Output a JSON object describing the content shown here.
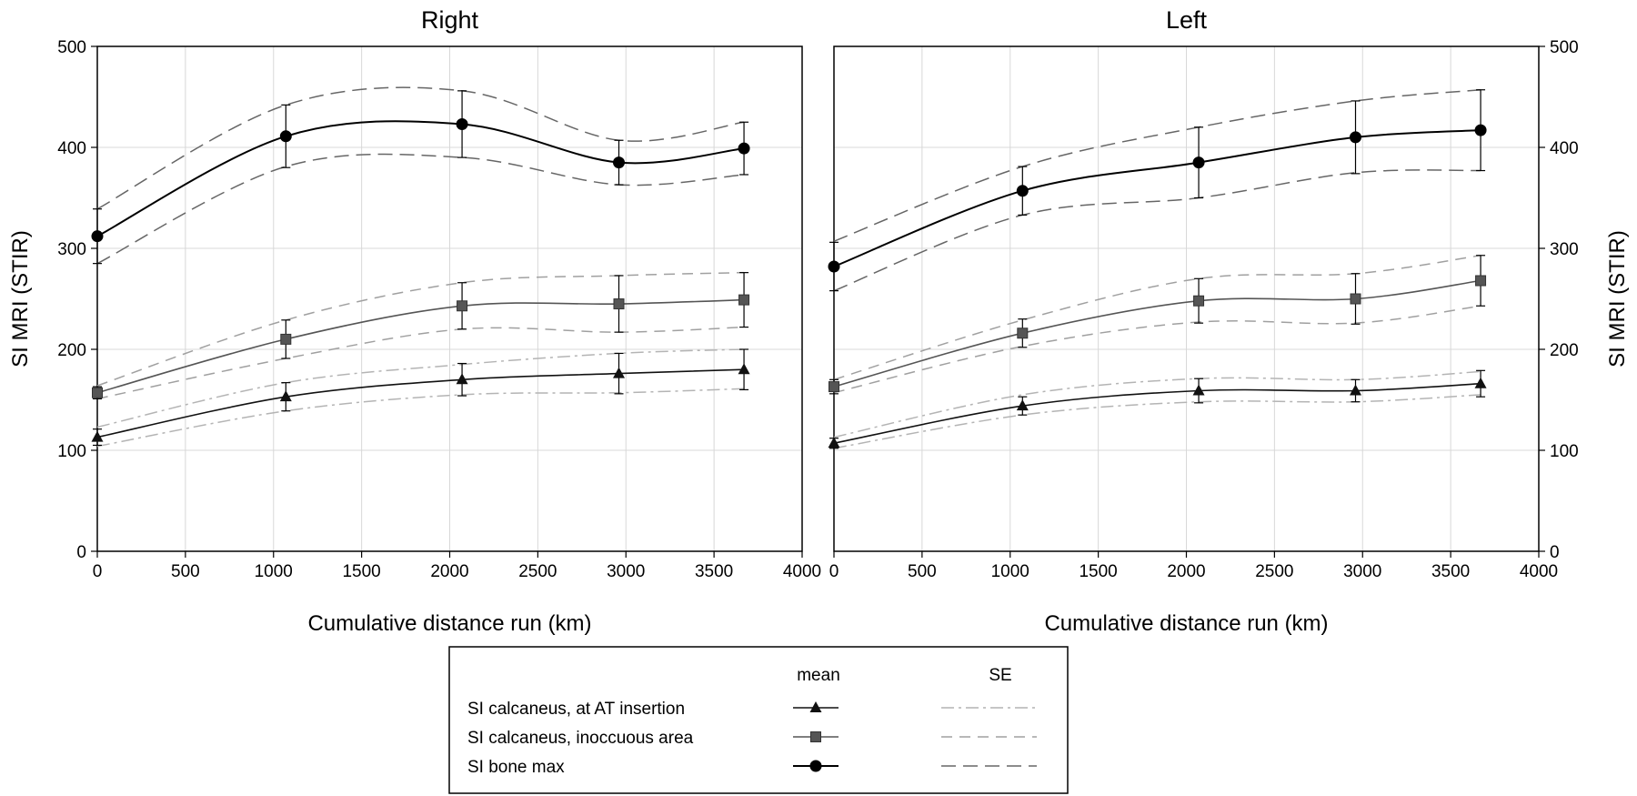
{
  "chart_data": [
    {
      "type": "line",
      "title": "Right",
      "xlabel": "Cumulative distance run (km)",
      "ylabel": "SI MRI (STIR)",
      "xlim": [
        0,
        4000
      ],
      "ylim": [
        0,
        500
      ],
      "x_ticks": [
        "0",
        "500",
        "1000",
        "1500",
        "2000",
        "2500",
        "3000",
        "3500",
        "4000"
      ],
      "y_ticks": [
        "0",
        "100",
        "200",
        "300",
        "400",
        "500"
      ],
      "grid": true,
      "y_axis_side": "left",
      "series": [
        {
          "key": "at",
          "x": [
            0,
            1070,
            2070,
            2960,
            3670
          ],
          "mean": [
            113,
            153,
            170,
            176,
            180
          ],
          "err": [
            8,
            14,
            16,
            20,
            20
          ],
          "upper": [
            123,
            167,
            185,
            196,
            200
          ],
          "lower": [
            104,
            139,
            155,
            157,
            161
          ]
        },
        {
          "key": "inoc",
          "x": [
            0,
            1070,
            2070,
            2960,
            3670
          ],
          "mean": [
            157,
            210,
            243,
            245,
            249
          ],
          "err": [
            6,
            19,
            23,
            28,
            27
          ],
          "upper": [
            164,
            229,
            266,
            273,
            276
          ],
          "lower": [
            151,
            191,
            220,
            217,
            222
          ]
        },
        {
          "key": "max",
          "x": [
            0,
            1070,
            2070,
            2960,
            3670
          ],
          "mean": [
            312,
            411,
            423,
            385,
            399
          ],
          "err": [
            27,
            31,
            33,
            22,
            26
          ],
          "upper": [
            339,
            442,
            456,
            407,
            425
          ],
          "lower": [
            285,
            381,
            390,
            363,
            373
          ]
        }
      ]
    },
    {
      "type": "line",
      "title": "Left",
      "xlabel": "Cumulative distance run (km)",
      "ylabel": "SI MRI (STIR)",
      "xlim": [
        0,
        4000
      ],
      "ylim": [
        0,
        500
      ],
      "x_ticks": [
        "0",
        "500",
        "1000",
        "1500",
        "2000",
        "2500",
        "3000",
        "3500",
        "4000"
      ],
      "y_ticks": [
        "0",
        "100",
        "200",
        "300",
        "400",
        "500"
      ],
      "grid": true,
      "y_axis_side": "right",
      "series": [
        {
          "key": "at",
          "x": [
            0,
            1070,
            2070,
            2960,
            3670
          ],
          "mean": [
            107,
            144,
            159,
            159,
            166
          ],
          "err": [
            5,
            9,
            12,
            11,
            13
          ],
          "upper": [
            113,
            155,
            171,
            170,
            178
          ],
          "lower": [
            102,
            135,
            148,
            148,
            155
          ]
        },
        {
          "key": "inoc",
          "x": [
            0,
            1070,
            2070,
            2960,
            3670
          ],
          "mean": [
            163,
            216,
            248,
            250,
            268
          ],
          "err": [
            7,
            14,
            22,
            25,
            25
          ],
          "upper": [
            170,
            229,
            270,
            275,
            293
          ],
          "lower": [
            157,
            203,
            227,
            226,
            243
          ]
        },
        {
          "key": "max",
          "x": [
            0,
            1070,
            2070,
            2960,
            3670
          ],
          "mean": [
            282,
            357,
            385,
            410,
            417
          ],
          "err": [
            24,
            24,
            35,
            36,
            40
          ],
          "upper": [
            307,
            381,
            420,
            446,
            457
          ],
          "lower": [
            258,
            333,
            350,
            375,
            377
          ]
        }
      ]
    }
  ],
  "legend": {
    "placement": "bottom-center",
    "mean_header": "mean",
    "se_header": "SE",
    "entries": [
      {
        "key": "at",
        "label": "SI calcaneus, at AT insertion",
        "marker": "triangle",
        "color": "#111111",
        "se_color": "#b4b4b4",
        "se_dash": "14,5,3,5"
      },
      {
        "key": "inoc",
        "label": "SI calcaneus, inoccuous area",
        "marker": "square",
        "color": "#555555",
        "se_color": "#a0a0a0",
        "se_dash": "12,8"
      },
      {
        "key": "max",
        "label": "SI bone max",
        "marker": "circle",
        "color": "#000000",
        "se_color": "#666666",
        "se_dash": "16,8"
      }
    ]
  },
  "colors": {
    "grid": "#d8d8d8",
    "axis": "#000000",
    "errorbar": "#000000"
  }
}
